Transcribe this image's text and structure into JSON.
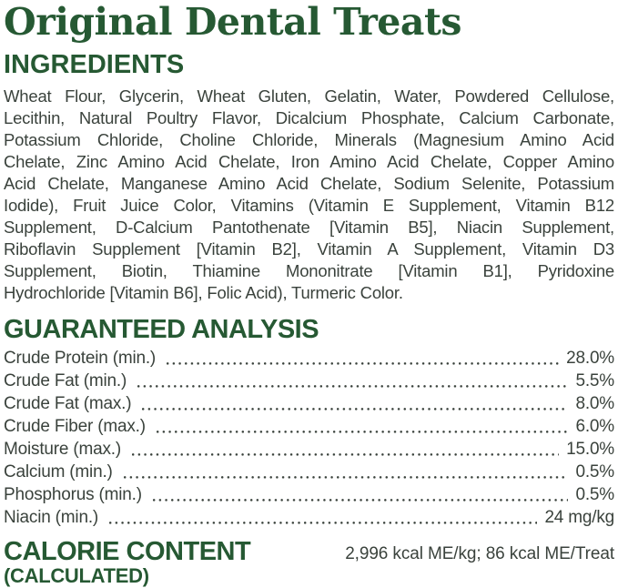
{
  "page": {
    "title": "Original Dental Treats",
    "colors": {
      "heading_green": "#265933",
      "body_ink": "#3a423c",
      "background": "#ffffff"
    }
  },
  "ingredients": {
    "heading": "INGREDIENTS",
    "lines": [
      "Wheat Flour, Glycerin, Wheat Gluten, Gelatin, Water, Powdered Cellulose,",
      "Lecithin, Natural Poultry Flavor, Dicalcium Phosphate, Calcium Carbonate,",
      "Potassium Chloride, Choline Chloride, Minerals (Magnesium Amino Acid",
      "Chelate, Zinc Amino Acid Chelate, Iron Amino Acid Chelate, Copper Amino",
      "Acid Chelate, Manganese Amino Acid Chelate, Sodium Selenite, Potassium",
      "Iodide), Fruit Juice Color, Vitamins (Vitamin E Supplement, Vitamin B12",
      "Supplement, D-Calcium Pantothenate [Vitamin B5], Niacin Supplement,",
      "Riboflavin Supplement [Vitamin B2], Vitamin A Supplement, Vitamin D3",
      "Supplement, Biotin, Thiamine Mononitrate [Vitamin B1], Pyridoxine",
      "Hydrochloride [Vitamin B6], Folic Acid), Turmeric Color."
    ]
  },
  "analysis": {
    "heading": "GUARANTEED ANALYSIS",
    "rows": [
      {
        "label": "Crude Protein (min.)",
        "value": "28.0%"
      },
      {
        "label": "Crude Fat (min.)",
        "value": "5.5%"
      },
      {
        "label": "Crude Fat (max.)",
        "value": "8.0%"
      },
      {
        "label": "Crude Fiber (max.)",
        "value": "6.0%"
      },
      {
        "label": "Moisture (max.)",
        "value": "15.0%"
      },
      {
        "label": "Calcium (min.)",
        "value": "0.5%"
      },
      {
        "label": "Phosphorus (min.)",
        "value": "0.5%"
      },
      {
        "label": "Niacin (min.)",
        "value": "24 mg/kg"
      }
    ]
  },
  "calorie": {
    "heading": "CALORIE CONTENT",
    "subheading": "(CALCULATED)",
    "value": "2,996 kcal ME/kg; 86 kcal ME/Treat"
  }
}
